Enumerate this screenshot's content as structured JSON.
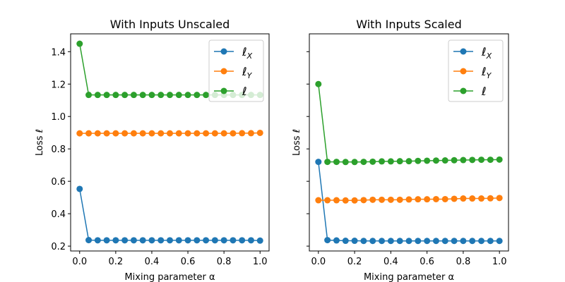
{
  "chart_data": [
    {
      "type": "line",
      "title": "With Inputs Unscaled",
      "xlabel": "Mixing parameter α",
      "ylabel": "Loss ℓ",
      "xlim": [
        -0.05,
        1.05
      ],
      "ylim": [
        0.17,
        1.51
      ],
      "xticks": [
        0.0,
        0.2,
        0.4,
        0.6,
        0.8,
        1.0
      ],
      "yticks": [
        0.2,
        0.4,
        0.6,
        0.8,
        1.0,
        1.2,
        1.4
      ],
      "legend": "top-right",
      "grid": false,
      "x": [
        0,
        0.05,
        0.1,
        0.15,
        0.2,
        0.25,
        0.3,
        0.35,
        0.4,
        0.45,
        0.5,
        0.55,
        0.6,
        0.65,
        0.7,
        0.75,
        0.8,
        0.85,
        0.9,
        0.95,
        1.0
      ],
      "series": [
        {
          "name": "ℓ_X",
          "color": "#1f77b4",
          "values": [
            0.553,
            0.237,
            0.236,
            0.236,
            0.236,
            0.236,
            0.236,
            0.236,
            0.236,
            0.236,
            0.236,
            0.236,
            0.236,
            0.236,
            0.236,
            0.236,
            0.236,
            0.236,
            0.236,
            0.236,
            0.234
          ]
        },
        {
          "name": "ℓ_Y",
          "color": "#ff7f0e",
          "values": [
            0.896,
            0.896,
            0.896,
            0.896,
            0.896,
            0.896,
            0.896,
            0.896,
            0.896,
            0.896,
            0.896,
            0.896,
            0.896,
            0.896,
            0.896,
            0.896,
            0.896,
            0.896,
            0.897,
            0.897,
            0.899
          ]
        },
        {
          "name": "ℓ",
          "color": "#2ca02c",
          "values": [
            1.449,
            1.133,
            1.133,
            1.133,
            1.133,
            1.133,
            1.133,
            1.133,
            1.133,
            1.133,
            1.133,
            1.133,
            1.133,
            1.133,
            1.133,
            1.133,
            1.133,
            1.133,
            1.133,
            1.133,
            1.133
          ]
        }
      ]
    },
    {
      "type": "line",
      "title": "With Inputs Scaled",
      "xlabel": "Mixing parameter α",
      "ylabel": "Loss ℓ",
      "xlim": [
        -0.05,
        1.05
      ],
      "ylim": [
        0.17,
        1.51
      ],
      "xticks": [
        0.0,
        0.2,
        0.4,
        0.6,
        0.8,
        1.0
      ],
      "yticks": [
        0.2,
        0.4,
        0.6,
        0.8,
        1.0,
        1.2,
        1.4
      ],
      "legend": "top-right",
      "grid": false,
      "x": [
        0,
        0.05,
        0.1,
        0.15,
        0.2,
        0.25,
        0.3,
        0.35,
        0.4,
        0.45,
        0.5,
        0.55,
        0.6,
        0.65,
        0.7,
        0.75,
        0.8,
        0.85,
        0.9,
        0.95,
        1.0
      ],
      "series": [
        {
          "name": "ℓ_X",
          "color": "#1f77b4",
          "values": [
            0.72,
            0.237,
            0.235,
            0.233,
            0.233,
            0.232,
            0.232,
            0.232,
            0.232,
            0.232,
            0.232,
            0.232,
            0.232,
            0.232,
            0.232,
            0.232,
            0.232,
            0.232,
            0.232,
            0.232,
            0.232
          ]
        },
        {
          "name": "ℓ_Y",
          "color": "#ff7f0e",
          "values": [
            0.483,
            0.483,
            0.483,
            0.482,
            0.482,
            0.484,
            0.486,
            0.486,
            0.486,
            0.486,
            0.488,
            0.489,
            0.489,
            0.49,
            0.49,
            0.492,
            0.494,
            0.494,
            0.494,
            0.495,
            0.497
          ]
        },
        {
          "name": "ℓ",
          "color": "#2ca02c",
          "values": [
            1.2,
            0.72,
            0.72,
            0.719,
            0.719,
            0.72,
            0.721,
            0.723,
            0.723,
            0.724,
            0.724,
            0.726,
            0.727,
            0.728,
            0.729,
            0.73,
            0.731,
            0.732,
            0.733,
            0.733,
            0.734
          ]
        }
      ]
    }
  ]
}
